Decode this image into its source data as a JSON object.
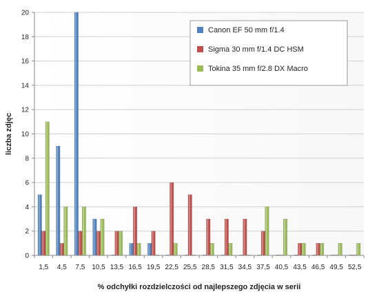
{
  "chart_data": {
    "type": "bar",
    "title": "",
    "xlabel": "% odchyłki  rozdzielczości  od najlepszego  zdjęcia  w serii",
    "ylabel": "liczba zdjęc",
    "ylim": [
      0,
      20
    ],
    "yticks": [
      "0",
      "2",
      "4",
      "6",
      "8",
      "10",
      "12",
      "14",
      "16",
      "18",
      "20"
    ],
    "grid": "horizontal",
    "legend_position": "top-right",
    "categories": [
      "1,5",
      "4,5",
      "7,5",
      "10,5",
      "13,5",
      "16,5",
      "19,5",
      "22,5",
      "25,5",
      "28,5",
      "31,5",
      "34,5",
      "37,5",
      "40,5",
      "43,5",
      "46,5",
      "49,5",
      "52,5"
    ],
    "series": [
      {
        "name": "Canon EF 50 mm f/1.4",
        "color": "#4f81bd",
        "values": [
          5,
          9,
          20,
          3,
          0,
          1,
          1,
          0,
          0,
          0,
          0,
          0,
          0,
          0,
          0,
          0,
          0,
          0
        ]
      },
      {
        "name": "Sigma 30 mm f/1.4 DC HSM",
        "color": "#c0504d",
        "values": [
          2,
          1,
          2,
          2,
          2,
          4,
          2,
          6,
          5,
          3,
          3,
          3,
          2,
          0,
          1,
          1,
          0,
          0
        ]
      },
      {
        "name": "Tokina 35 mm f/2.8 DX Macro",
        "color": "#9bbb59",
        "values": [
          11,
          4,
          4,
          3,
          2,
          1,
          0,
          1,
          0,
          1,
          1,
          0,
          4,
          3,
          1,
          1,
          1,
          1
        ]
      }
    ]
  }
}
